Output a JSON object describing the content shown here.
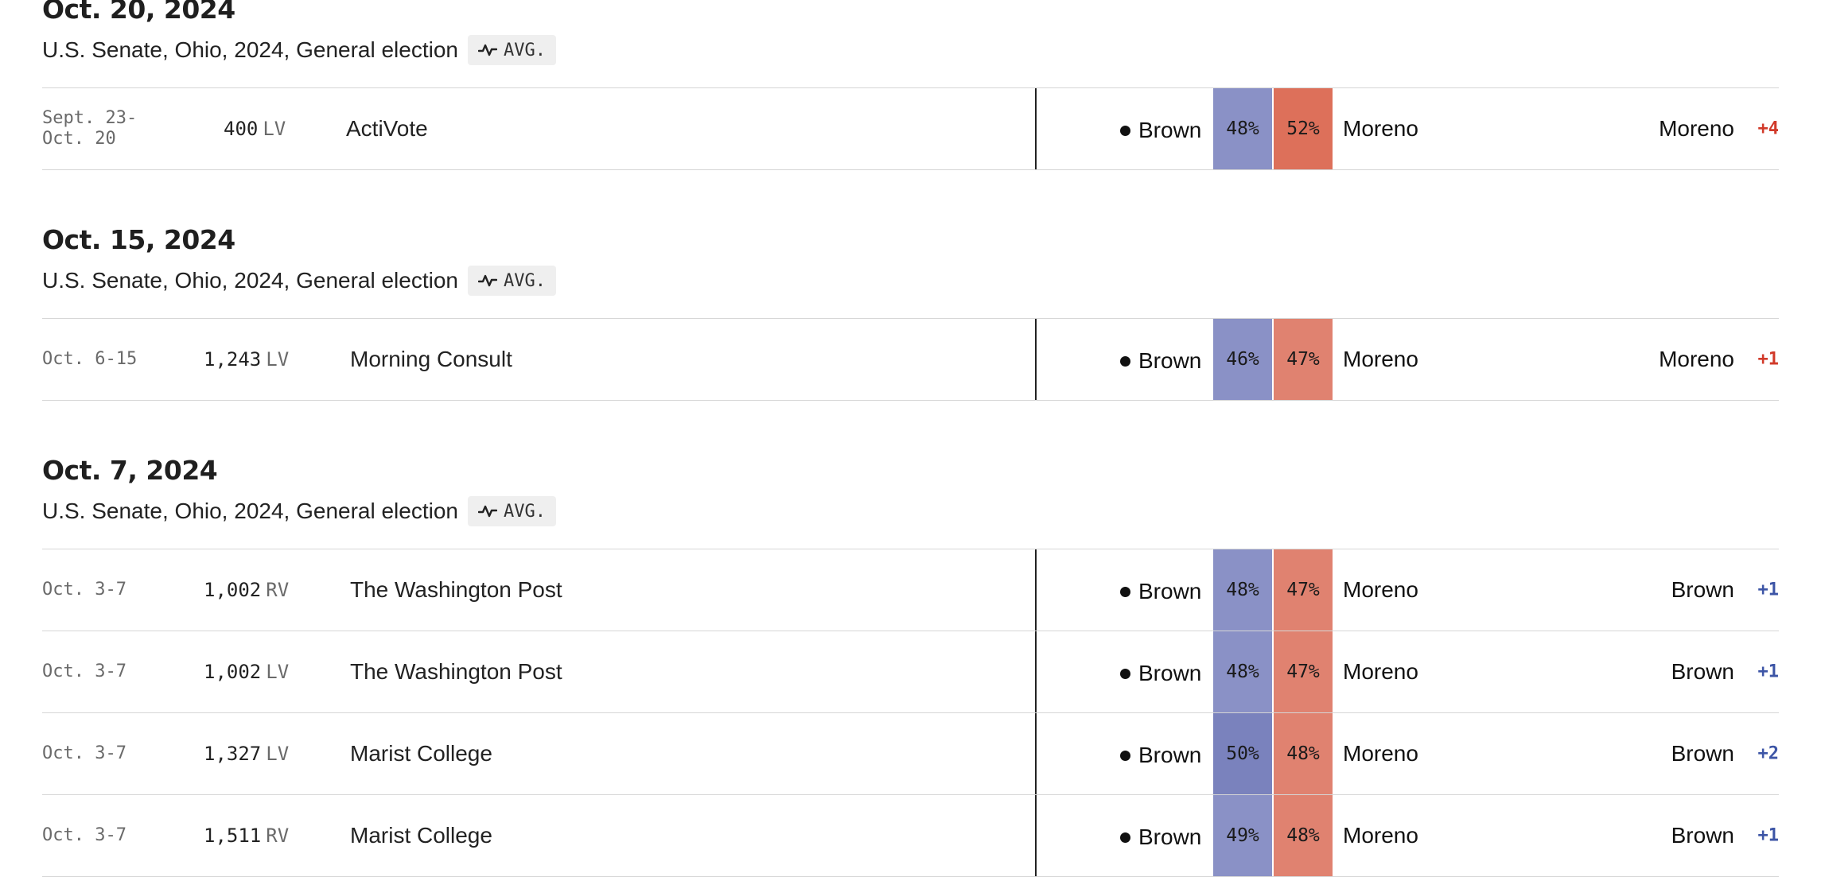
{
  "colors": {
    "dem_strong": "#7a82bd",
    "dem_light": "#8a91c6",
    "rep_strong": "#dd705a",
    "rep_light": "#e08270",
    "rep_text": "#d13a2a",
    "dem_text": "#3d55a6"
  },
  "icons": {
    "avg_badge": "trend-line-icon"
  },
  "sections": [
    {
      "date": "Oct. 20, 2024",
      "race": "U.S. Senate, Ohio, 2024, General election",
      "badge": "AVG.",
      "rows": [
        {
          "dates": "Sept. 23-\nOct. 20",
          "sample": "400",
          "population": "LV",
          "pollster": "ActiVote",
          "dem_name": "Brown",
          "dem_pct": "48%",
          "rep_pct": "52%",
          "rep_name": "Moreno",
          "leader": "Moreno",
          "margin": "+4",
          "margin_party": "rep",
          "dem_shade": "light",
          "rep_shade": "strong"
        }
      ]
    },
    {
      "date": "Oct. 15, 2024",
      "race": "U.S. Senate, Ohio, 2024, General election",
      "badge": "AVG.",
      "rows": [
        {
          "dates": "Oct. 6-15",
          "sample": "1,243",
          "population": "LV",
          "pollster": "Morning Consult",
          "dem_name": "Brown",
          "dem_pct": "46%",
          "rep_pct": "47%",
          "rep_name": "Moreno",
          "leader": "Moreno",
          "margin": "+1",
          "margin_party": "rep",
          "dem_shade": "light",
          "rep_shade": "light"
        }
      ]
    },
    {
      "date": "Oct. 7, 2024",
      "race": "U.S. Senate, Ohio, 2024, General election",
      "badge": "AVG.",
      "rows": [
        {
          "dates": "Oct. 3-7",
          "sample": "1,002",
          "population": "RV",
          "pollster": "The Washington Post",
          "dem_name": "Brown",
          "dem_pct": "48%",
          "rep_pct": "47%",
          "rep_name": "Moreno",
          "leader": "Brown",
          "margin": "+1",
          "margin_party": "dem",
          "dem_shade": "light",
          "rep_shade": "light"
        },
        {
          "dates": "Oct. 3-7",
          "sample": "1,002",
          "population": "LV",
          "pollster": "The Washington Post",
          "dem_name": "Brown",
          "dem_pct": "48%",
          "rep_pct": "47%",
          "rep_name": "Moreno",
          "leader": "Brown",
          "margin": "+1",
          "margin_party": "dem",
          "dem_shade": "light",
          "rep_shade": "light"
        },
        {
          "dates": "Oct. 3-7",
          "sample": "1,327",
          "population": "LV",
          "pollster": "Marist College",
          "dem_name": "Brown",
          "dem_pct": "50%",
          "rep_pct": "48%",
          "rep_name": "Moreno",
          "leader": "Brown",
          "margin": "+2",
          "margin_party": "dem",
          "dem_shade": "strong",
          "rep_shade": "light"
        },
        {
          "dates": "Oct. 3-7",
          "sample": "1,511",
          "population": "RV",
          "pollster": "Marist College",
          "dem_name": "Brown",
          "dem_pct": "49%",
          "rep_pct": "48%",
          "rep_name": "Moreno",
          "leader": "Brown",
          "margin": "+1",
          "margin_party": "dem",
          "dem_shade": "light",
          "rep_shade": "light"
        }
      ]
    }
  ]
}
